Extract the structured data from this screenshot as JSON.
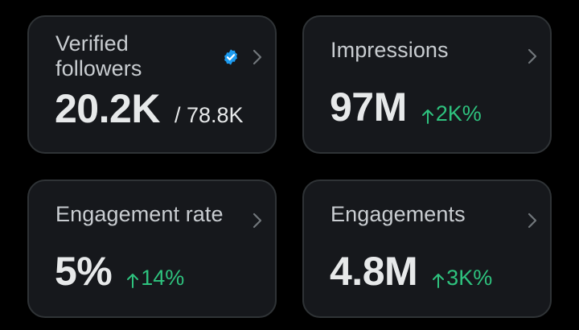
{
  "colors": {
    "background": "#000000",
    "card_background": "#16181c",
    "card_border": "#2f3336",
    "label_text": "#c9cdd1",
    "value_text": "#e7e9ea",
    "positive_change": "#2ec27e",
    "verified_badge": "#1d9bf0"
  },
  "cards": [
    {
      "label": "Verified followers",
      "icon": "verified-badge-icon",
      "value": "20.2K",
      "secondary": "/ 78.8K"
    },
    {
      "label": "Impressions",
      "value": "97M",
      "change": "2K%",
      "change_direction": "up"
    },
    {
      "label": "Engagement rate",
      "value": "5%",
      "change": "14%",
      "change_direction": "up"
    },
    {
      "label": "Engagements",
      "value": "4.8M",
      "change": "3K%",
      "change_direction": "up"
    }
  ]
}
